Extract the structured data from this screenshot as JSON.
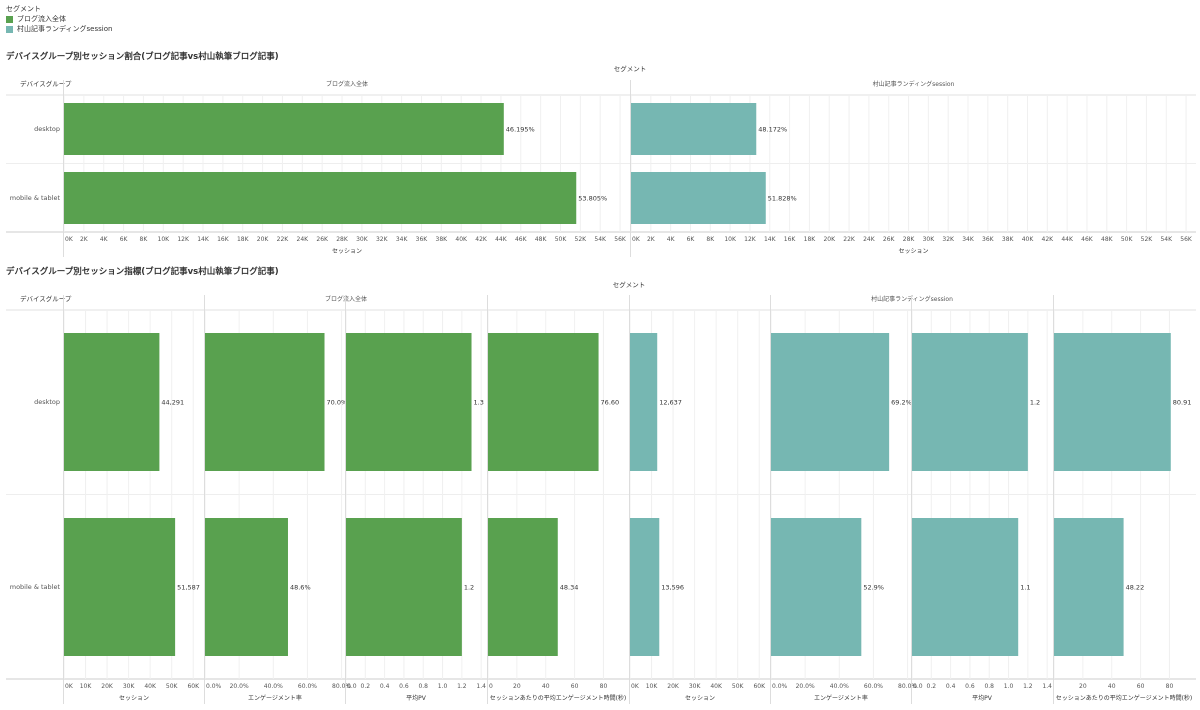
{
  "legend": {
    "title": "セグメント",
    "items": [
      {
        "label": "ブログ流入全体",
        "color": "#59a14f"
      },
      {
        "label": "村山記事ランディングsession",
        "color": "#76b7b2"
      }
    ]
  },
  "chart_data": [
    {
      "type": "bar",
      "orientation": "horizontal",
      "title": "デバイスグループ別セッション割合(ブログ記事vs村山執筆ブログ記事)",
      "header_title": "セグメント",
      "row_header": "デバイスグループ",
      "categories": [
        "desktop",
        "mobile & tablet"
      ],
      "panels": [
        {
          "segment": "ブログ流入全体",
          "color": "#59a14f",
          "xlabel": "セッション",
          "xlim": [
            0,
            57000
          ],
          "ticks": [
            0,
            2000,
            4000,
            6000,
            8000,
            10000,
            12000,
            14000,
            16000,
            18000,
            20000,
            22000,
            24000,
            26000,
            28000,
            30000,
            32000,
            34000,
            36000,
            38000,
            40000,
            42000,
            44000,
            46000,
            48000,
            50000,
            52000,
            54000,
            56000
          ],
          "tick_labels": [
            "0K",
            "2K",
            "4K",
            "6K",
            "8K",
            "10K",
            "12K",
            "14K",
            "16K",
            "18K",
            "20K",
            "22K",
            "24K",
            "26K",
            "28K",
            "30K",
            "32K",
            "34K",
            "36K",
            "38K",
            "40K",
            "42K",
            "44K",
            "46K",
            "48K",
            "50K",
            "52K",
            "54K",
            "56K"
          ],
          "values": [
            44291,
            51587
          ],
          "value_labels": [
            "46.195%",
            "53.805%"
          ]
        },
        {
          "segment": "村山記事ランディングsession",
          "color": "#76b7b2",
          "xlabel": "セッション",
          "xlim": [
            0,
            57000
          ],
          "ticks": [
            0,
            2000,
            4000,
            6000,
            8000,
            10000,
            12000,
            14000,
            16000,
            18000,
            20000,
            22000,
            24000,
            26000,
            28000,
            30000,
            32000,
            34000,
            36000,
            38000,
            40000,
            42000,
            44000,
            46000,
            48000,
            50000,
            52000,
            54000,
            56000
          ],
          "tick_labels": [
            "0K",
            "2K",
            "4K",
            "6K",
            "8K",
            "10K",
            "12K",
            "14K",
            "16K",
            "18K",
            "20K",
            "22K",
            "24K",
            "26K",
            "28K",
            "30K",
            "32K",
            "34K",
            "36K",
            "38K",
            "40K",
            "42K",
            "44K",
            "46K",
            "48K",
            "50K",
            "52K",
            "54K",
            "56K"
          ],
          "values": [
            12637,
            13596
          ],
          "value_labels": [
            "48.172%",
            "51.828%"
          ]
        }
      ]
    },
    {
      "type": "bar",
      "orientation": "horizontal",
      "title": "デバイスグループ別セッション指標(ブログ記事vs村山執筆ブログ記事)",
      "header_title": "セグメント",
      "row_header": "デバイスグループ",
      "categories": [
        "desktop",
        "mobile & tablet"
      ],
      "segments": [
        "ブログ流入全体",
        "村山記事ランディングsession"
      ],
      "panels": [
        {
          "segment": "ブログ流入全体",
          "color": "#59a14f",
          "xlabel": "セッション",
          "xlim": [
            0,
            65000
          ],
          "ticks": [
            0,
            10000,
            20000,
            30000,
            40000,
            50000,
            60000
          ],
          "tick_labels": [
            "0K",
            "10K",
            "20K",
            "30K",
            "40K",
            "50K",
            "60K"
          ],
          "values": [
            44291,
            51587
          ],
          "value_labels": [
            "44,291",
            "51,587"
          ]
        },
        {
          "segment": "ブログ流入全体",
          "color": "#59a14f",
          "xlabel": "エンゲージメント率",
          "xlim": [
            0,
            0.82
          ],
          "ticks": [
            0,
            0.2,
            0.4,
            0.6,
            0.8
          ],
          "tick_labels": [
            "0.0%",
            "20.0%",
            "40.0%",
            "60.0%",
            "80.0%"
          ],
          "values": [
            0.7,
            0.486
          ],
          "value_labels": [
            "70.0%",
            "48.6%"
          ]
        },
        {
          "segment": "ブログ流入全体",
          "color": "#59a14f",
          "xlabel": "平均PV",
          "xlim": [
            0,
            1.45
          ],
          "ticks": [
            0,
            0.2,
            0.4,
            0.6,
            0.8,
            1.0,
            1.2,
            1.4
          ],
          "tick_labels": [
            "0.0",
            "0.2",
            "0.4",
            "0.6",
            "0.8",
            "1.0",
            "1.2",
            "1.4"
          ],
          "values": [
            1.3,
            1.2
          ],
          "value_labels": [
            "1.3",
            "1.2"
          ]
        },
        {
          "segment": "ブログ流入全体",
          "color": "#59a14f",
          "xlabel": "セッションあたりの平均エンゲージメント時間(秒)",
          "xlim": [
            0,
            97
          ],
          "ticks": [
            0,
            20,
            40,
            60,
            80
          ],
          "tick_labels": [
            "0",
            "20",
            "40",
            "60",
            "80"
          ],
          "values": [
            76.6,
            48.34
          ],
          "value_labels": [
            "76.60",
            "48.34"
          ]
        },
        {
          "segment": "村山記事ランディングsession",
          "color": "#76b7b2",
          "xlabel": "セッション",
          "xlim": [
            0,
            65000
          ],
          "ticks": [
            0,
            10000,
            20000,
            30000,
            40000,
            50000,
            60000
          ],
          "tick_labels": [
            "0K",
            "10K",
            "20K",
            "30K",
            "40K",
            "50K",
            "60K"
          ],
          "values": [
            12637,
            13596
          ],
          "value_labels": [
            "12,637",
            "13,596"
          ]
        },
        {
          "segment": "村山記事ランディングsession",
          "color": "#76b7b2",
          "xlabel": "エンゲージメント率",
          "xlim": [
            0,
            0.82
          ],
          "ticks": [
            0,
            0.2,
            0.4,
            0.6,
            0.8
          ],
          "tick_labels": [
            "0.0%",
            "20.0%",
            "40.0%",
            "60.0%",
            "80.0%"
          ],
          "values": [
            0.692,
            0.529
          ],
          "value_labels": [
            "69.2%",
            "52.9%"
          ]
        },
        {
          "segment": "村山記事ランディングsession",
          "color": "#76b7b2",
          "xlabel": "平均PV",
          "xlim": [
            0,
            1.45
          ],
          "ticks": [
            0,
            0.2,
            0.4,
            0.6,
            0.8,
            1.0,
            1.2,
            1.4
          ],
          "tick_labels": [
            "0.0",
            "0.2",
            "0.4",
            "0.6",
            "0.8",
            "1.0",
            "1.2",
            "1.4"
          ],
          "values": [
            1.2,
            1.1
          ],
          "value_labels": [
            "1.2",
            "1.1"
          ]
        },
        {
          "segment": "村山記事ランディングsession",
          "color": "#76b7b2",
          "xlabel": "セッションあたりの平均エンゲージメント時間(秒)",
          "xlim": [
            0,
            97
          ],
          "ticks": [
            0,
            20,
            40,
            60,
            80
          ],
          "tick_labels": [
            "20",
            "40",
            "60",
            "80"
          ],
          "tick_values_shown": [
            20,
            40,
            60,
            80
          ],
          "values": [
            80.91,
            48.22
          ],
          "value_labels": [
            "80.91",
            "48.22"
          ]
        }
      ]
    }
  ]
}
